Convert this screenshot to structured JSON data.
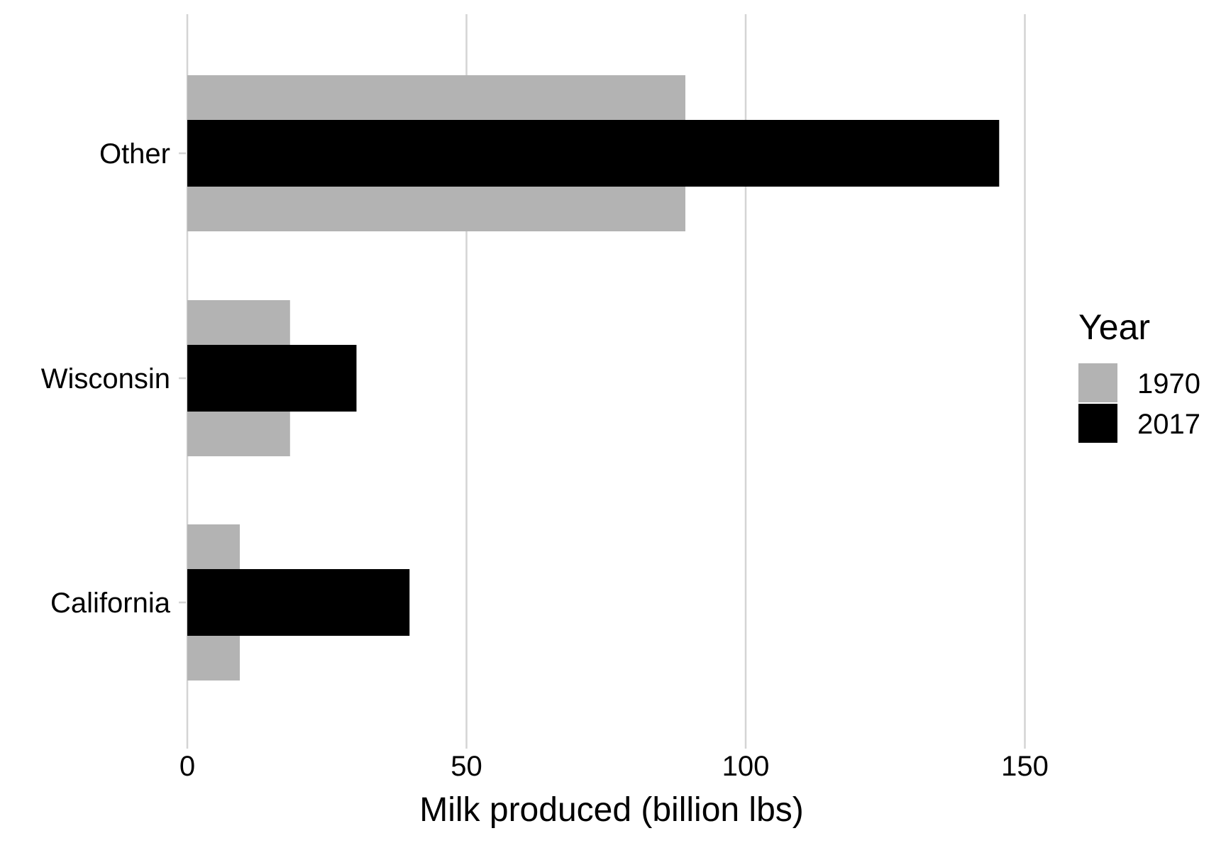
{
  "chart_data": {
    "type": "bar",
    "orientation": "horizontal",
    "categories": [
      "Other",
      "Wisconsin",
      "California"
    ],
    "series": [
      {
        "name": "1970",
        "color": "#b3b3b3",
        "values": [
          89.2,
          18.4,
          9.4
        ]
      },
      {
        "name": "2017",
        "color": "#000000",
        "values": [
          145.4,
          30.3,
          39.8
        ]
      }
    ],
    "xlabel": "Milk produced (billion lbs)",
    "ylabel": "",
    "xlim": [
      0,
      165
    ],
    "xticks": [
      0,
      50,
      100,
      150
    ],
    "xtick_labels": [
      "0",
      "50",
      "100",
      "150"
    ],
    "grid": "vertical major lines",
    "legend": {
      "title": "Year",
      "position": "right",
      "entries": [
        "1970",
        "2017"
      ]
    }
  }
}
